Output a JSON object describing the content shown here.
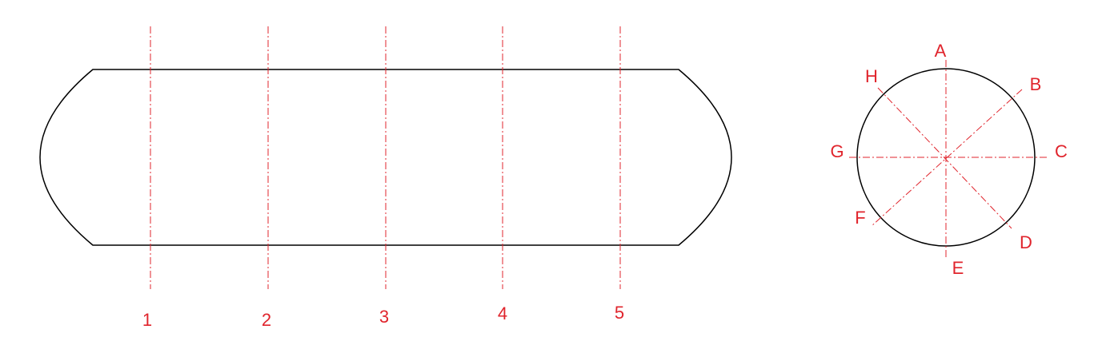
{
  "colors": {
    "outline": "#000000",
    "guide": "#e0242c",
    "background": "#ffffff"
  },
  "side_view": {
    "section_labels": [
      "1",
      "2",
      "3",
      "4",
      "5"
    ]
  },
  "end_view": {
    "direction_labels": {
      "a": "A",
      "b": "B",
      "c": "C",
      "d": "D",
      "e": "E",
      "f": "F",
      "g": "G",
      "h": "H"
    }
  }
}
